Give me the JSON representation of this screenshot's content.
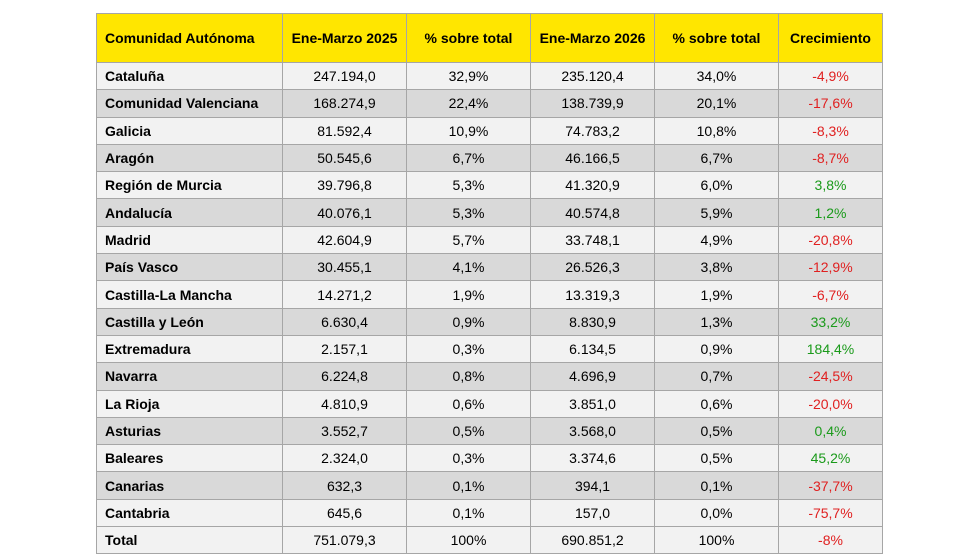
{
  "table": {
    "headers": [
      "Comunidad Autónoma",
      "Ene-Marzo 2025",
      "% sobre total",
      "Ene-Marzo 2026",
      "% sobre total",
      "Crecimiento"
    ],
    "rows": [
      [
        "Cataluña",
        "247.194,0",
        "32,9%",
        "235.120,4",
        "34,0%",
        "-4,9%"
      ],
      [
        "Comunidad Valenciana",
        "168.274,9",
        "22,4%",
        "138.739,9",
        "20,1%",
        "-17,6%"
      ],
      [
        "Galicia",
        "81.592,4",
        "10,9%",
        "74.783,2",
        "10,8%",
        "-8,3%"
      ],
      [
        "Aragón",
        "50.545,6",
        "6,7%",
        "46.166,5",
        "6,7%",
        "-8,7%"
      ],
      [
        "Región de Murcia",
        "39.796,8",
        "5,3%",
        "41.320,9",
        "6,0%",
        "3,8%"
      ],
      [
        "Andalucía",
        "40.076,1",
        "5,3%",
        "40.574,8",
        "5,9%",
        "1,2%"
      ],
      [
        "Madrid",
        "42.604,9",
        "5,7%",
        "33.748,1",
        "4,9%",
        "-20,8%"
      ],
      [
        "País Vasco",
        "30.455,1",
        "4,1%",
        "26.526,3",
        "3,8%",
        "-12,9%"
      ],
      [
        "Castilla-La Mancha",
        "14.271,2",
        "1,9%",
        "13.319,3",
        "1,9%",
        "-6,7%"
      ],
      [
        "Castilla y León",
        "6.630,4",
        "0,9%",
        "8.830,9",
        "1,3%",
        "33,2%"
      ],
      [
        "Extremadura",
        "2.157,1",
        "0,3%",
        "6.134,5",
        "0,9%",
        "184,4%"
      ],
      [
        "Navarra",
        "6.224,8",
        "0,8%",
        "4.696,9",
        "0,7%",
        "-24,5%"
      ],
      [
        "La Rioja",
        "4.810,9",
        "0,6%",
        "3.851,0",
        "0,6%",
        "-20,0%"
      ],
      [
        "Asturias",
        "3.552,7",
        "0,5%",
        "3.568,0",
        "0,5%",
        "0,4%"
      ],
      [
        "Baleares",
        "2.324,0",
        "0,3%",
        "3.374,6",
        "0,5%",
        "45,2%"
      ],
      [
        "Canarias",
        "632,3",
        "0,1%",
        "394,1",
        "0,1%",
        "-37,7%"
      ],
      [
        "Cantabria",
        "645,6",
        "0,1%",
        "157,0",
        "0,0%",
        "-75,7%"
      ],
      [
        "Total",
        "751.079,3",
        "100%",
        "690.851,2",
        "100%",
        "-8%"
      ]
    ]
  },
  "colors": {
    "header_bg": "#ffe600",
    "row_light": "#f2f2f2",
    "row_dark": "#d9d9d9",
    "negative": "#e02020",
    "positive": "#1a9a1a"
  }
}
